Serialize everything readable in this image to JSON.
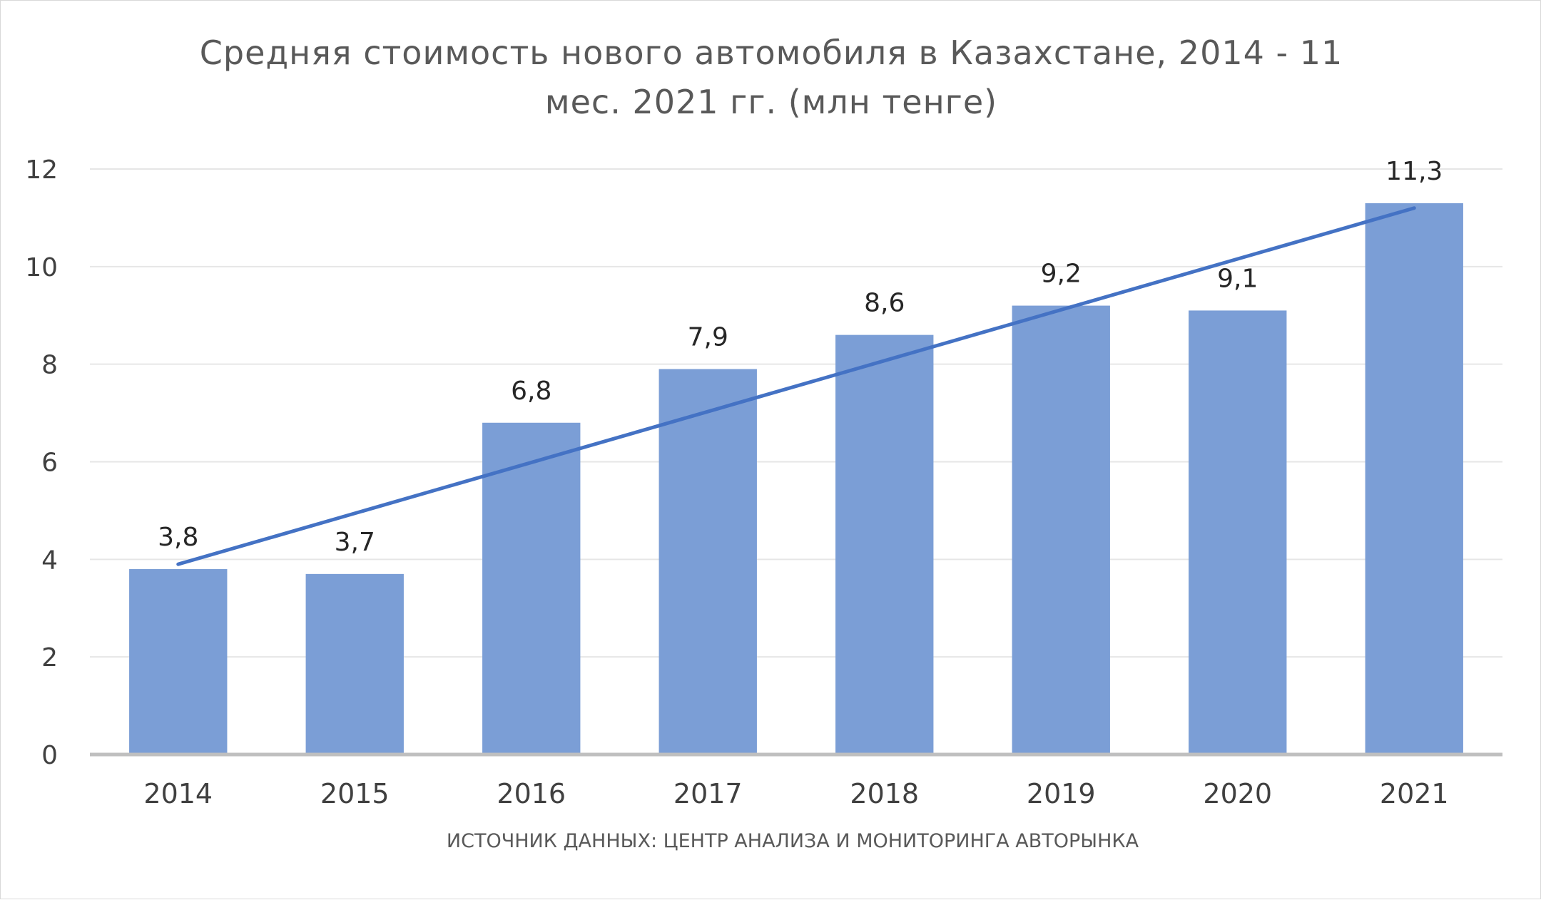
{
  "chart_data": {
    "type": "bar",
    "title": "Средняя стоимость нового автомобиля в Казахстане, 2014 - 11 мес. 2021 гг. (млн тенге)",
    "title_lines": [
      "Средняя стоимость нового автомобиля в Казахстане, 2014 - 11",
      "мес. 2021 гг. (млн тенге)"
    ],
    "categories": [
      "2014",
      "2015",
      "2016",
      "2017",
      "2018",
      "2019",
      "2020",
      "2021"
    ],
    "values": [
      3.8,
      3.7,
      6.8,
      7.9,
      8.6,
      9.2,
      9.1,
      11.3
    ],
    "data_labels": [
      "3,8",
      "3,7",
      "6,8",
      "7,9",
      "8,6",
      "9,2",
      "9,1",
      "11,3"
    ],
    "trendline": {
      "type": "linear",
      "start": 3.9,
      "end": 11.2
    },
    "ylim": [
      0,
      12
    ],
    "yticks": [
      "0",
      "2",
      "4",
      "6",
      "8",
      "10",
      "12"
    ],
    "xlabel": "ИСТОЧНИК ДАННЫХ: ЦЕНТР АНАЛИЗА И МОНИТОРИНГА АВТОРЫНКА",
    "ylabel": "",
    "grid": true,
    "legend": "none",
    "colors": {
      "bar": "#7b9ed6",
      "trend": "#4472c4",
      "grid": "#e6e6e6",
      "axis": "#bfbfbf"
    }
  }
}
